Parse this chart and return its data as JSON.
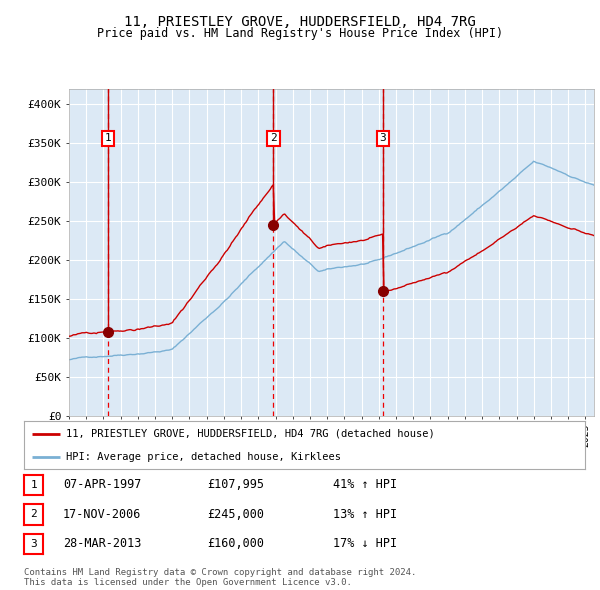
{
  "title": "11, PRIESTLEY GROVE, HUDDERSFIELD, HD4 7RG",
  "subtitle": "Price paid vs. HM Land Registry's House Price Index (HPI)",
  "bg_color": "#dce9f5",
  "plot_bg_color": "#dce9f5",
  "red_line_color": "#cc0000",
  "blue_line_color": "#7ab0d4",
  "sale_dot_color": "#880000",
  "vline_color": "#ee0000",
  "grid_color": "#ffffff",
  "ylim": [
    0,
    420000
  ],
  "yticks": [
    0,
    50000,
    100000,
    150000,
    200000,
    250000,
    300000,
    350000,
    400000
  ],
  "ytick_labels": [
    "£0",
    "£50K",
    "£100K",
    "£150K",
    "£200K",
    "£250K",
    "£300K",
    "£350K",
    "£400K"
  ],
  "sales": [
    {
      "date_num": 1997.27,
      "price": 107995,
      "label": "1"
    },
    {
      "date_num": 2006.88,
      "price": 245000,
      "label": "2"
    },
    {
      "date_num": 2013.23,
      "price": 160000,
      "label": "3"
    }
  ],
  "transaction_labels": [
    {
      "label": "1",
      "date": "07-APR-1997",
      "price": "£107,995",
      "hpi_text": "41% ↑ HPI"
    },
    {
      "label": "2",
      "date": "17-NOV-2006",
      "price": "£245,000",
      "hpi_text": "13% ↑ HPI"
    },
    {
      "label": "3",
      "date": "28-MAR-2013",
      "price": "£160,000",
      "hpi_text": "17% ↓ HPI"
    }
  ],
  "legend_red": "11, PRIESTLEY GROVE, HUDDERSFIELD, HD4 7RG (detached house)",
  "legend_blue": "HPI: Average price, detached house, Kirklees",
  "footer": "Contains HM Land Registry data © Crown copyright and database right 2024.\nThis data is licensed under the Open Government Licence v3.0.",
  "xmin": 1995.0,
  "xmax": 2025.5
}
